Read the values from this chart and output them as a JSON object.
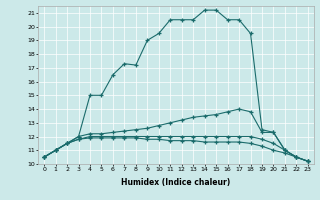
{
  "xlabel": "Humidex (Indice chaleur)",
  "x_ticks": [
    0,
    1,
    2,
    3,
    4,
    5,
    6,
    7,
    8,
    9,
    10,
    11,
    12,
    13,
    14,
    15,
    16,
    17,
    18,
    19,
    20,
    21,
    22,
    23
  ],
  "ylim": [
    10,
    21.5
  ],
  "xlim": [
    -0.5,
    23.5
  ],
  "y_ticks": [
    10,
    11,
    12,
    13,
    14,
    15,
    16,
    17,
    18,
    19,
    20,
    21
  ],
  "bg_color": "#cce9e9",
  "line_color": "#1a6b6b",
  "grid_color": "#ffffff",
  "curve1": [
    10.5,
    11.0,
    11.5,
    12.0,
    15.0,
    15.0,
    16.5,
    17.3,
    17.2,
    19.0,
    19.5,
    20.5,
    20.5,
    20.5,
    21.2,
    21.2,
    20.5,
    20.5,
    19.5,
    12.5,
    12.3,
    11.0,
    10.5,
    10.2
  ],
  "curve2": [
    10.5,
    11.0,
    11.5,
    12.0,
    12.2,
    12.2,
    12.3,
    12.4,
    12.5,
    12.6,
    12.8,
    13.0,
    13.2,
    13.4,
    13.5,
    13.6,
    13.8,
    14.0,
    13.8,
    12.3,
    12.3,
    11.0,
    10.5,
    10.2
  ],
  "curve3": [
    10.5,
    11.0,
    11.5,
    11.8,
    12.0,
    12.0,
    12.0,
    12.0,
    12.0,
    12.0,
    12.0,
    12.0,
    12.0,
    12.0,
    12.0,
    12.0,
    12.0,
    12.0,
    12.0,
    11.8,
    11.5,
    11.0,
    10.5,
    10.2
  ],
  "curve4": [
    10.5,
    11.0,
    11.5,
    11.8,
    11.9,
    11.9,
    11.9,
    11.9,
    11.9,
    11.8,
    11.8,
    11.7,
    11.7,
    11.7,
    11.6,
    11.6,
    11.6,
    11.6,
    11.5,
    11.3,
    11.0,
    10.8,
    10.5,
    10.2
  ]
}
